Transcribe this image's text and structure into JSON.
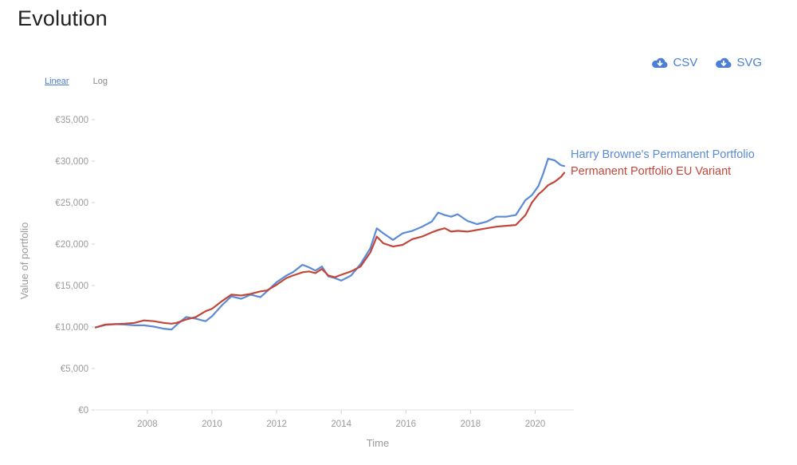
{
  "header": {
    "title": "Evolution"
  },
  "downloads": {
    "csv_label": "CSV",
    "svg_label": "SVG"
  },
  "scale": {
    "linear_label": "Linear",
    "log_label": "Log",
    "active": "Linear"
  },
  "colors": {
    "series_blue": "#5b8bd6",
    "series_red": "#c2473a",
    "accent": "#4a7fd4"
  },
  "chart_data": {
    "type": "line",
    "xlabel": "Time",
    "ylabel": "Value of portfolio",
    "xlim": [
      2006.4,
      2020.9
    ],
    "ylim": [
      0,
      35000
    ],
    "x_ticks": [
      2008,
      2010,
      2012,
      2014,
      2016,
      2018,
      2020
    ],
    "y_ticks": [
      0,
      5000,
      10000,
      15000,
      20000,
      25000,
      30000,
      35000
    ],
    "y_tick_labels": [
      "€0",
      "€5,000",
      "€10,000",
      "€15,000",
      "€20,000",
      "€25,000",
      "€30,000",
      "€35,000"
    ],
    "grid": false,
    "series": [
      {
        "name": "Harry Browne's Permanent Portfolio",
        "color": "#5b8bd6",
        "x": [
          2006.4,
          2006.7,
          2007.0,
          2007.3,
          2007.6,
          2007.9,
          2008.2,
          2008.5,
          2008.75,
          2008.9,
          2009.2,
          2009.5,
          2009.8,
          2010.0,
          2010.3,
          2010.6,
          2010.9,
          2011.2,
          2011.5,
          2011.7,
          2012.0,
          2012.3,
          2012.5,
          2012.8,
          2013.0,
          2013.2,
          2013.4,
          2013.6,
          2013.8,
          2014.0,
          2014.3,
          2014.6,
          2014.9,
          2015.1,
          2015.3,
          2015.6,
          2015.9,
          2016.2,
          2016.5,
          2016.8,
          2017.0,
          2017.2,
          2017.4,
          2017.6,
          2017.9,
          2018.2,
          2018.5,
          2018.8,
          2019.1,
          2019.4,
          2019.7,
          2019.9,
          2020.1,
          2020.25,
          2020.4,
          2020.6,
          2020.8,
          2020.9
        ],
        "values": [
          9950,
          10250,
          10350,
          10300,
          10200,
          10200,
          10050,
          9800,
          9700,
          10250,
          11200,
          11000,
          10700,
          11300,
          12600,
          13700,
          13400,
          13900,
          13600,
          14300,
          15400,
          16200,
          16600,
          17500,
          17200,
          16800,
          17300,
          16100,
          15900,
          15600,
          16200,
          17600,
          19500,
          21900,
          21300,
          20500,
          21300,
          21600,
          22100,
          22700,
          23800,
          23500,
          23300,
          23600,
          22800,
          22400,
          22700,
          23300,
          23300,
          23500,
          25300,
          25900,
          27000,
          28500,
          30300,
          30100,
          29500,
          29400
        ]
      },
      {
        "name": "Permanent Portfolio EU Variant",
        "color": "#c2473a",
        "x": [
          2006.4,
          2006.7,
          2007.0,
          2007.3,
          2007.6,
          2007.9,
          2008.2,
          2008.5,
          2008.75,
          2008.9,
          2009.2,
          2009.5,
          2009.8,
          2010.0,
          2010.3,
          2010.6,
          2010.9,
          2011.2,
          2011.5,
          2011.7,
          2012.0,
          2012.3,
          2012.5,
          2012.8,
          2013.0,
          2013.2,
          2013.4,
          2013.6,
          2013.8,
          2014.0,
          2014.3,
          2014.6,
          2014.9,
          2015.1,
          2015.3,
          2015.6,
          2015.9,
          2016.2,
          2016.5,
          2016.8,
          2017.0,
          2017.2,
          2017.4,
          2017.6,
          2017.9,
          2018.2,
          2018.5,
          2018.8,
          2019.1,
          2019.4,
          2019.7,
          2019.9,
          2020.1,
          2020.25,
          2020.4,
          2020.6,
          2020.8,
          2020.9
        ],
        "values": [
          9950,
          10300,
          10350,
          10400,
          10500,
          10800,
          10700,
          10500,
          10400,
          10500,
          10900,
          11200,
          11900,
          12200,
          13100,
          13900,
          13800,
          14000,
          14300,
          14400,
          15100,
          15900,
          16200,
          16600,
          16700,
          16500,
          17000,
          16200,
          16000,
          16300,
          16700,
          17300,
          19000,
          20900,
          20100,
          19700,
          19900,
          20600,
          20900,
          21400,
          21700,
          21900,
          21500,
          21600,
          21500,
          21700,
          21900,
          22100,
          22200,
          22300,
          23500,
          25000,
          26000,
          26500,
          27100,
          27500,
          28100,
          28600
        ]
      }
    ]
  }
}
